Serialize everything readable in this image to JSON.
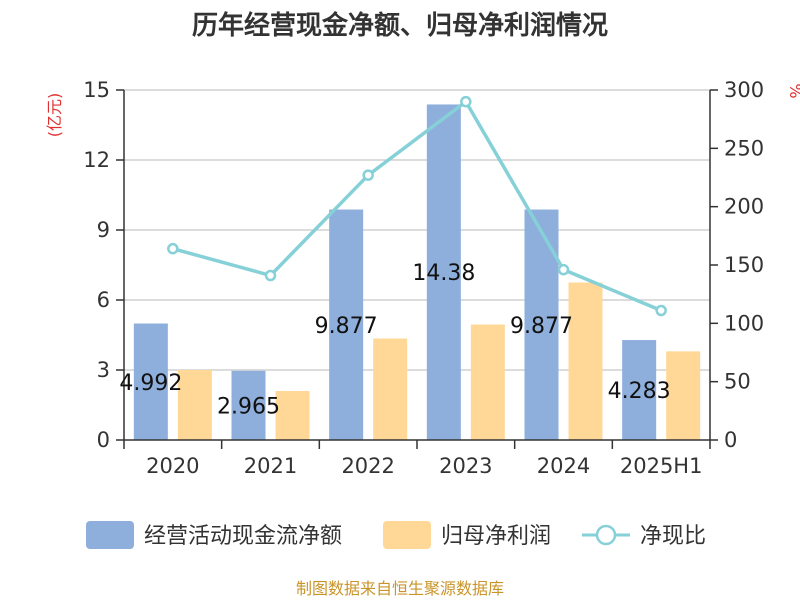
{
  "chart_data": {
    "type": "bar",
    "title": "历年经营现金净额、归母净利润情况",
    "categories": [
      "2020",
      "2021",
      "2022",
      "2023",
      "2024",
      "2025H1"
    ],
    "series": [
      {
        "name": "经营活动现金流净额",
        "kind": "bar",
        "axis": "left",
        "color": "#8eaedb",
        "values": [
          4.992,
          2.965,
          9.877,
          14.38,
          9.877,
          4.283
        ],
        "labels": [
          "4.992",
          "2.965",
          "9.877",
          "14.38",
          "9.877",
          "4.283"
        ]
      },
      {
        "name": "归母净利润",
        "kind": "bar",
        "axis": "left",
        "color": "#ffd898",
        "values": [
          3.0,
          2.1,
          4.35,
          4.95,
          6.75,
          3.8
        ]
      },
      {
        "name": "净现比",
        "kind": "line",
        "axis": "right",
        "color": "#86d0d8",
        "values": [
          164,
          141,
          227,
          290,
          146,
          111
        ]
      }
    ],
    "y_left": {
      "unit": "(亿元)",
      "min": 0,
      "max": 15,
      "ticks": [
        0,
        3,
        6,
        9,
        12,
        15
      ]
    },
    "y_right": {
      "unit": "%",
      "min": 0,
      "max": 300,
      "ticks": [
        0,
        50,
        100,
        150,
        200,
        250,
        300
      ]
    },
    "grid": true,
    "legend_position": "bottom"
  },
  "source_text": "制图数据来自恒生聚源数据库"
}
